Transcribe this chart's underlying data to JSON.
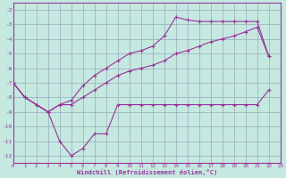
{
  "bg_color": "#c5e8e0",
  "grid_color": "#99aabb",
  "line_color": "#993399",
  "xlim": [
    0,
    23
  ],
  "ylim": [
    -12.5,
    -1.5
  ],
  "yticks": [
    -2,
    -3,
    -4,
    -5,
    -6,
    -7,
    -8,
    -9,
    -10,
    -11,
    -12
  ],
  "xticks": [
    0,
    1,
    2,
    3,
    4,
    5,
    6,
    7,
    8,
    9,
    10,
    11,
    12,
    13,
    14,
    15,
    16,
    17,
    18,
    19,
    20,
    21,
    22,
    23
  ],
  "series1_x": [
    0,
    1,
    3,
    4,
    5,
    6,
    7,
    8,
    9,
    10,
    11,
    12,
    13,
    14,
    15,
    16,
    17,
    18,
    19,
    20,
    21,
    22
  ],
  "series1_y": [
    -7.0,
    -8.0,
    -9.0,
    -11.0,
    -12.0,
    -11.5,
    -10.5,
    -10.5,
    -8.5,
    -8.5,
    -8.5,
    -8.5,
    -8.5,
    -8.5,
    -8.5,
    -8.5,
    -8.5,
    -8.5,
    -8.5,
    -8.5,
    -8.5,
    -7.5
  ],
  "series2_x": [
    0,
    1,
    2,
    3,
    4,
    5,
    6,
    7,
    8,
    9,
    10,
    11,
    12,
    13,
    14,
    15,
    16,
    17,
    18,
    19,
    20,
    21,
    22
  ],
  "series2_y": [
    -7.0,
    -8.0,
    -8.5,
    -9.0,
    -8.5,
    -8.5,
    -8.0,
    -7.5,
    -7.0,
    -6.5,
    -6.2,
    -6.0,
    -5.8,
    -5.5,
    -5.0,
    -4.8,
    -4.5,
    -4.2,
    -4.0,
    -3.8,
    -3.5,
    -3.2,
    -5.2
  ],
  "series3_x": [
    0,
    1,
    2,
    3,
    4,
    5,
    6,
    7,
    8,
    9,
    10,
    11,
    12,
    13,
    14,
    15,
    16,
    17,
    18,
    19,
    20,
    21,
    22
  ],
  "series3_y": [
    -7.0,
    -8.0,
    -8.5,
    -9.0,
    -8.5,
    -8.2,
    -7.2,
    -6.5,
    -6.0,
    -5.5,
    -5.0,
    -4.8,
    -4.5,
    -3.8,
    -2.5,
    -2.7,
    -2.8,
    -2.8,
    -2.8,
    -2.8,
    -2.8,
    -2.8,
    -5.2
  ],
  "xlabel": "Windchill (Refroidissement éolien,°C)"
}
